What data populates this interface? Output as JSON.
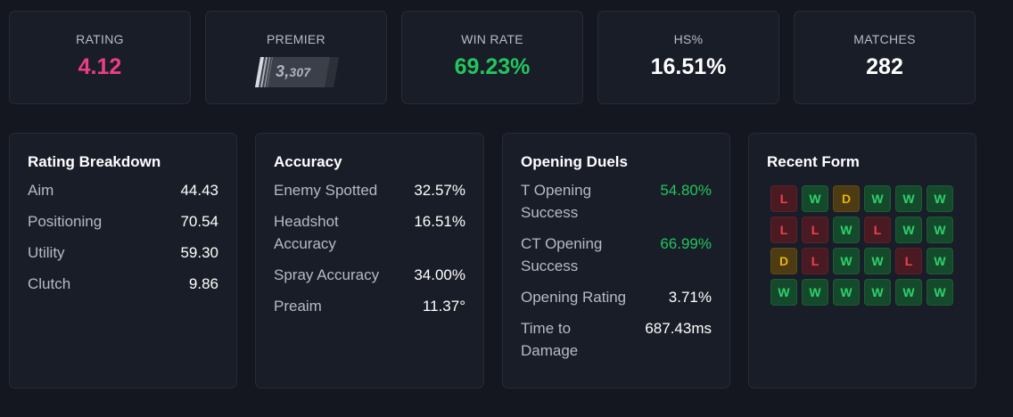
{
  "stats": {
    "rating": {
      "label": "RATING",
      "value": "4.12"
    },
    "premier": {
      "label": "PREMIER",
      "value_main": "3,",
      "value_small": "307"
    },
    "winrate": {
      "label": "WIN RATE",
      "value": "69.23%"
    },
    "hs": {
      "label": "HS%",
      "value": "16.51%"
    },
    "matches": {
      "label": "MATCHES",
      "value": "282"
    }
  },
  "rating_breakdown": {
    "title": "Rating Breakdown",
    "rows": [
      {
        "label": "Aim",
        "value": "44.43"
      },
      {
        "label": "Positioning",
        "value": "70.54"
      },
      {
        "label": "Utility",
        "value": "59.30"
      },
      {
        "label": "Clutch",
        "value": "9.86"
      }
    ]
  },
  "accuracy": {
    "title": "Accuracy",
    "rows": [
      {
        "label": "Enemy Spotted",
        "value": "32.57%"
      },
      {
        "label": "Headshot Accuracy",
        "value": "16.51%"
      },
      {
        "label": "Spray Accuracy",
        "value": "34.00%"
      },
      {
        "label": "Preaim",
        "value": "11.37°"
      }
    ]
  },
  "opening_duels": {
    "title": "Opening Duels",
    "rows": [
      {
        "label": "T Opening Success",
        "value": "54.80%"
      },
      {
        "label": "CT Opening Success",
        "value": "66.99%"
      },
      {
        "label": "Opening Rating",
        "value": "3.71%"
      },
      {
        "label": "Time to Damage",
        "value": "687.43ms"
      }
    ]
  },
  "recent_form": {
    "title": "Recent Form",
    "results": [
      "L",
      "W",
      "D",
      "W",
      "W",
      "W",
      "L",
      "L",
      "W",
      "L",
      "W",
      "W",
      "D",
      "L",
      "W",
      "W",
      "L",
      "W",
      "W",
      "W",
      "W",
      "W",
      "W",
      "W"
    ]
  },
  "colors": {
    "rating_pink": "#ee3d88",
    "positive_green": "#22c55e",
    "win": "#2ed16a",
    "loss": "#f0414f",
    "draw": "#eab308"
  }
}
